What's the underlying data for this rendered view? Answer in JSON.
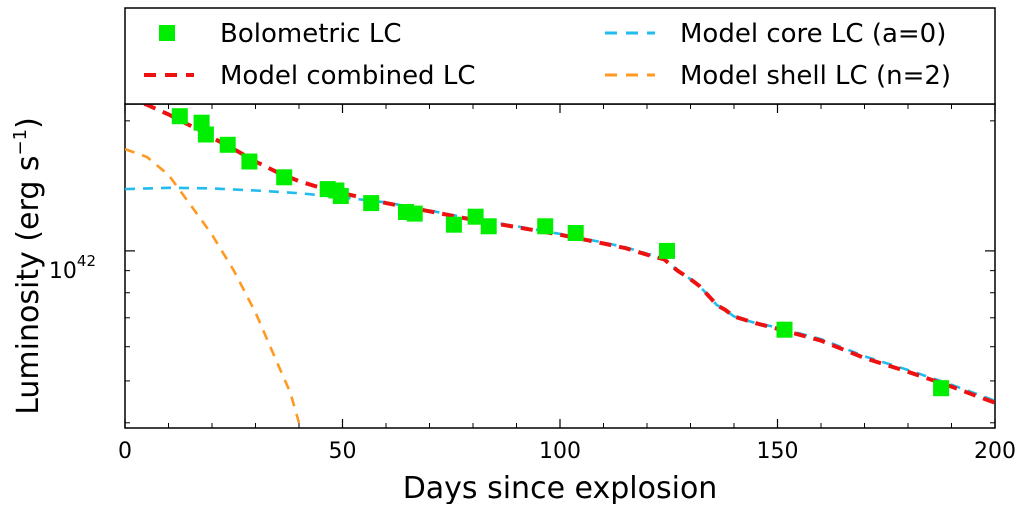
{
  "chart_data": {
    "type": "scatter",
    "xlabel": "Days since explosion",
    "ylabel_main": "Luminosity (erg s",
    "ylabel_sup": "−1",
    "ylabel_tail": ")",
    "xlim": [
      0,
      200
    ],
    "ylim_log10": [
      41.59,
      42.34
    ],
    "log_y": true,
    "grid": false,
    "legend_position": "top, outside plot",
    "x_ticks": [
      {
        "value": 0,
        "label": "0"
      },
      {
        "value": 50,
        "label": "50"
      },
      {
        "value": 100,
        "label": "100"
      },
      {
        "value": 150,
        "label": "150"
      },
      {
        "value": 200,
        "label": "200"
      }
    ],
    "y_tick": {
      "base": "10",
      "exponent": "42",
      "value": 1e+42
    },
    "series": [
      {
        "name": "Bolometric LC",
        "kind": "markers",
        "color": "#00ee00",
        "x": [
          12.6,
          17.6,
          18.6,
          23.6,
          28.6,
          36.6,
          46.6,
          48.6,
          49.6,
          56.6,
          64.6,
          66.6,
          75.6,
          80.6,
          83.6,
          96.6,
          103.6,
          124.6,
          151.6,
          187.6
        ],
        "y": [
          2.05e+42,
          1.98e+42,
          1.86e+42,
          1.76e+42,
          1.61e+42,
          1.48e+42,
          1.39e+42,
          1.38e+42,
          1.34e+42,
          1.29e+42,
          1.23e+42,
          1.22e+42,
          1.15e+42,
          1.2e+42,
          1.14e+42,
          1.14e+42,
          1.1e+42,
          1e+42,
          6.57e+41,
          4.81e+41
        ]
      },
      {
        "name": "Model combined LC",
        "kind": "dashed-line",
        "color": "#ee1111",
        "x": [
          0,
          5,
          10,
          15,
          20,
          25,
          30,
          35,
          40,
          45,
          50,
          55,
          60,
          70,
          80,
          90,
          100,
          110,
          115,
          120,
          124,
          127,
          130,
          132,
          133.5,
          135,
          136,
          138,
          140,
          145,
          150,
          160,
          170,
          180,
          190,
          200
        ],
        "y": [
          2.25e+42,
          2.18e+42,
          2.07e+42,
          1.95e+42,
          1.83e+42,
          1.72e+42,
          1.61e+42,
          1.52e+42,
          1.45e+42,
          1.4e+42,
          1.36e+42,
          1.325e+42,
          1.29e+42,
          1.235e+42,
          1.18e+42,
          1.135e+42,
          1.09e+42,
          1.04e+42,
          1.015e+42,
          9.8e+41,
          9.55e+41,
          9e+41,
          8.6e+41,
          8.3e+41,
          8e+41,
          7.7e+41,
          7.5e+41,
          7.3e+41,
          7.05e+41,
          6.8e+41,
          6.6e+41,
          6.2e+41,
          5.65e+41,
          5.25e+41,
          4.85e+41,
          4.45e+41
        ]
      },
      {
        "name": "Model core LC (a=0)",
        "kind": "dashed-line",
        "color": "#22bbee",
        "x": [
          0,
          10,
          20,
          30,
          40,
          50,
          60,
          70,
          80,
          90,
          100,
          110,
          115,
          120,
          124,
          127,
          130,
          132,
          133.5,
          135,
          136,
          138,
          140,
          145,
          150,
          160,
          170,
          180,
          190,
          200
        ],
        "y": [
          1.39e+42,
          1.4e+42,
          1.395e+42,
          1.38e+42,
          1.36e+42,
          1.33e+42,
          1.295e+42,
          1.24e+42,
          1.185e+42,
          1.14e+42,
          1.095e+42,
          1.045e+42,
          1.02e+42,
          9.85e+41,
          9.55e+41,
          9e+41,
          8.6e+41,
          8.3e+41,
          8e+41,
          7.7e+41,
          7.5e+41,
          7.3e+41,
          7.05e+41,
          6.8e+41,
          6.65e+41,
          6.25e+41,
          5.7e+41,
          5.3e+41,
          4.9e+41,
          4.5e+41
        ]
      },
      {
        "name": "Model shell LC (n=2)",
        "kind": "dashed-line",
        "color": "#ff9922",
        "x": [
          0,
          5,
          10,
          15,
          20,
          25,
          30,
          35,
          38,
          40
        ],
        "y": [
          1.72e+42,
          1.65e+42,
          1.5e+42,
          1.28e+42,
          1.09e+42,
          9e+41,
          7.2e+41,
          5.5e+41,
          4.7e+41,
          4e+41
        ]
      }
    ]
  }
}
